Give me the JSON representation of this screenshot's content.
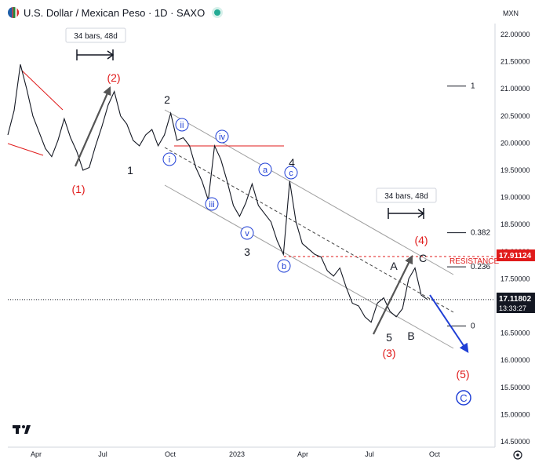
{
  "header": {
    "title": "U.S. Dollar / Mexican Peso · 1D · SAXO"
  },
  "currency_label": "MXN",
  "bars_box_1": "34 bars, 48d",
  "bars_box_2": "34 bars, 48d",
  "price_tags": {
    "resistance_price": "17.91124",
    "last_price": "17.11802",
    "countdown": "13:33:27"
  },
  "resistance_label": "RESISTANCE",
  "fib_labels": [
    "1",
    "0.382",
    "0.236",
    "0"
  ],
  "wave_labels_red": [
    "(2)",
    "(1)",
    "(3)",
    "(4)",
    "(5)"
  ],
  "wave_labels_black": [
    "2",
    "1",
    "3",
    "4",
    "5",
    "A",
    "B",
    "C"
  ],
  "wave_labels_circled": [
    "ii",
    "i",
    "iv",
    "iii",
    "v",
    "a",
    "b",
    "c",
    "C"
  ],
  "colors": {
    "red": "#e01b1b",
    "blue": "#1f3fd6",
    "price_tag_dark": "#131722",
    "channel": "#9e9e9e"
  },
  "chart_data": {
    "type": "line",
    "title": "U.S. Dollar / Mexican Peso · 1D · SAXO",
    "xlabel": "",
    "ylabel": "",
    "x_tick_labels": [
      "Apr",
      "Jul",
      "Oct",
      "2023",
      "Apr",
      "Jul",
      "Oct"
    ],
    "y_tick_labels": [
      "22.00000",
      "21.50000",
      "21.00000",
      "20.50000",
      "20.00000",
      "19.50000",
      "19.00000",
      "18.50000",
      "18.00000",
      "17.50000",
      "17.00000",
      "16.50000",
      "16.00000",
      "15.50000",
      "15.00000",
      "14.50000"
    ],
    "ylim": [
      14.4,
      22.2
    ],
    "grid": false,
    "series": [
      {
        "values": [
          20.15,
          20.6,
          21.45,
          21.0,
          20.5,
          20.2,
          19.9,
          19.75,
          20.05,
          20.45,
          20.1,
          19.85,
          19.5,
          19.55,
          19.95,
          20.3,
          20.7,
          20.95,
          20.5,
          20.35,
          20.05,
          19.95,
          20.15,
          20.25,
          19.95,
          20.15,
          20.55,
          20.05,
          20.1,
          19.95,
          19.55,
          19.3,
          18.95,
          19.95,
          19.7,
          19.3,
          18.85,
          18.65,
          18.9,
          19.25,
          18.85,
          18.7,
          18.55,
          18.2,
          17.95,
          19.3,
          18.55,
          18.15,
          18.05,
          17.95,
          17.9,
          17.65,
          17.55,
          17.7,
          17.35,
          17.05,
          17.0,
          16.8,
          16.7,
          17.05,
          17.15,
          16.9,
          16.8,
          16.95,
          17.5,
          17.7,
          17.2,
          17.118
        ]
      }
    ],
    "fib_levels": [
      {
        "label": "1",
        "price": 21.05
      },
      {
        "label": "0.382",
        "price": 18.35
      },
      {
        "label": "0.236",
        "price": 17.72
      },
      {
        "label": "0",
        "price": 16.63
      }
    ],
    "horizontal_lines": [
      {
        "label": "RESISTANCE",
        "price": 17.91124
      },
      {
        "price": 17.11802
      }
    ]
  }
}
